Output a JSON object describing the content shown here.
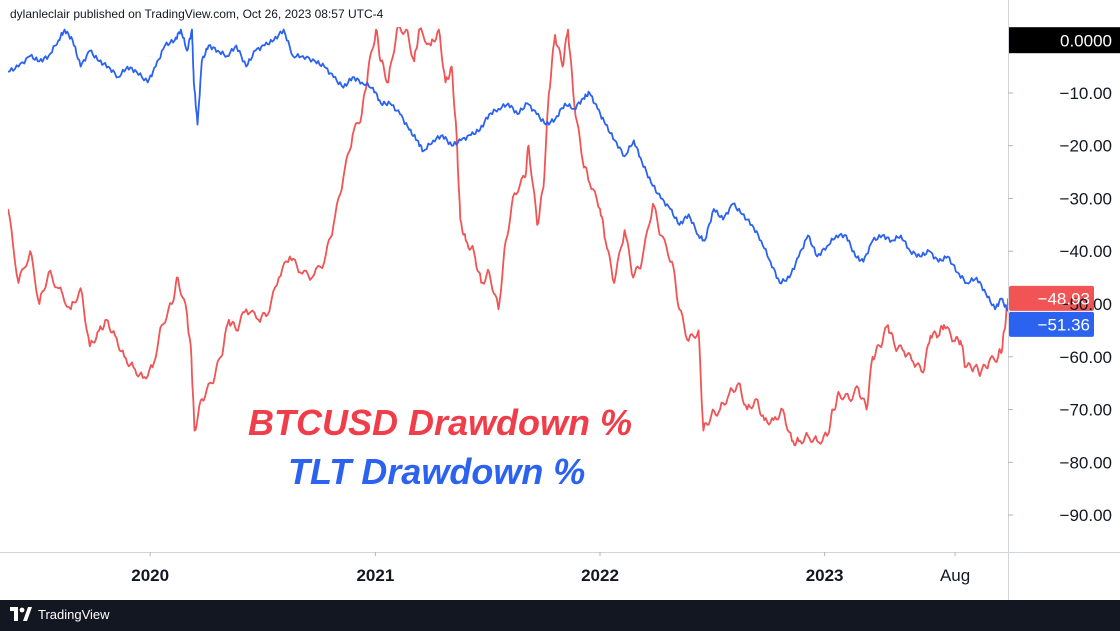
{
  "header": {
    "published_line": "dylanleclair published on TradingView.com, Oct 26, 2023 08:57 UTC-4"
  },
  "footer": {
    "brand_name": "TradingView",
    "logo_icon": "tradingview-logo-icon"
  },
  "chart_data": {
    "type": "line",
    "ylim": [
      -97,
      2.5
    ],
    "y_ticks": [
      "0.0000",
      "−10.00",
      "−20.00",
      "−30.00",
      "−40.00",
      "−50.00",
      "−60.00",
      "−70.00",
      "−80.00",
      "−90.00"
    ],
    "y_tick_values": [
      0,
      -10,
      -20,
      -30,
      -40,
      -50,
      -60,
      -70,
      -80,
      -90
    ],
    "x_range": [
      "2019-05-15",
      "2023-10-26"
    ],
    "x_ticks": [
      {
        "label": "2020",
        "date": "2020-01-01"
      },
      {
        "label": "2021",
        "date": "2021-01-01"
      },
      {
        "label": "2022",
        "date": "2022-01-01"
      },
      {
        "label": "2023",
        "date": "2023-01-01"
      },
      {
        "label": "Aug",
        "date": "2023-08-01"
      }
    ],
    "grid": false,
    "annotations": [
      {
        "text": "BTCUSD Drawdown %",
        "color": "#ef3e4a"
      },
      {
        "text": "TLT Drawdown %",
        "color": "#2b62f0"
      }
    ],
    "series": [
      {
        "name": "BTCUSD Drawdown %",
        "color": "#f05454",
        "last_value_label": "−48.93",
        "last_value": -48.93,
        "points": [
          [
            "2019-05-15",
            -32
          ],
          [
            "2019-06-01",
            -46
          ],
          [
            "2019-06-20",
            -40
          ],
          [
            "2019-07-05",
            -50
          ],
          [
            "2019-07-20",
            -44
          ],
          [
            "2019-08-05",
            -47
          ],
          [
            "2019-08-25",
            -51
          ],
          [
            "2019-09-10",
            -47
          ],
          [
            "2019-09-25",
            -58
          ],
          [
            "2019-10-10",
            -55
          ],
          [
            "2019-10-22",
            -53
          ],
          [
            "2019-11-05",
            -56
          ],
          [
            "2019-11-20",
            -60
          ],
          [
            "2019-12-05",
            -62
          ],
          [
            "2019-12-20",
            -64
          ],
          [
            "2020-01-05",
            -62
          ],
          [
            "2020-01-20",
            -54
          ],
          [
            "2020-02-05",
            -50
          ],
          [
            "2020-02-15",
            -45
          ],
          [
            "2020-03-01",
            -52
          ],
          [
            "2020-03-08",
            -60
          ],
          [
            "2020-03-13",
            -74
          ],
          [
            "2020-03-25",
            -68
          ],
          [
            "2020-04-10",
            -65
          ],
          [
            "2020-04-25",
            -60
          ],
          [
            "2020-05-08",
            -53
          ],
          [
            "2020-05-20",
            -55
          ],
          [
            "2020-06-05",
            -51
          ],
          [
            "2020-06-25",
            -53
          ],
          [
            "2020-07-10",
            -52
          ],
          [
            "2020-07-28",
            -45
          ],
          [
            "2020-08-15",
            -41
          ],
          [
            "2020-09-01",
            -44
          ],
          [
            "2020-09-20",
            -45
          ],
          [
            "2020-10-10",
            -42
          ],
          [
            "2020-10-25",
            -35
          ],
          [
            "2020-11-10",
            -26
          ],
          [
            "2020-11-25",
            -18
          ],
          [
            "2020-12-10",
            -14
          ],
          [
            "2020-12-20",
            -6
          ],
          [
            "2021-01-02",
            2
          ],
          [
            "2021-01-10",
            -4
          ],
          [
            "2021-01-22",
            -8
          ],
          [
            "2021-02-05",
            2
          ],
          [
            "2021-02-20",
            2
          ],
          [
            "2021-03-05",
            -4
          ],
          [
            "2021-03-13",
            2
          ],
          [
            "2021-04-01",
            -1
          ],
          [
            "2021-04-14",
            2
          ],
          [
            "2021-04-25",
            -8
          ],
          [
            "2021-05-05",
            -5
          ],
          [
            "2021-05-13",
            -18
          ],
          [
            "2021-05-19",
            -34
          ],
          [
            "2021-05-28",
            -38
          ],
          [
            "2021-06-10",
            -40
          ],
          [
            "2021-06-22",
            -46
          ],
          [
            "2021-07-05",
            -44
          ],
          [
            "2021-07-20",
            -51
          ],
          [
            "2021-08-01",
            -38
          ],
          [
            "2021-08-15",
            -29
          ],
          [
            "2021-09-01",
            -26
          ],
          [
            "2021-09-07",
            -20
          ],
          [
            "2021-09-21",
            -35
          ],
          [
            "2021-10-01",
            -28
          ],
          [
            "2021-10-10",
            -10
          ],
          [
            "2021-10-20",
            1
          ],
          [
            "2021-11-01",
            -5
          ],
          [
            "2021-11-10",
            2
          ],
          [
            "2021-11-20",
            -12
          ],
          [
            "2021-12-04",
            -23
          ],
          [
            "2021-12-15",
            -27
          ],
          [
            "2022-01-01",
            -32
          ],
          [
            "2022-01-10",
            -38
          ],
          [
            "2022-01-24",
            -46
          ],
          [
            "2022-02-10",
            -36
          ],
          [
            "2022-02-24",
            -45
          ],
          [
            "2022-03-10",
            -42
          ],
          [
            "2022-03-28",
            -31
          ],
          [
            "2022-04-10",
            -37
          ],
          [
            "2022-04-28",
            -42
          ],
          [
            "2022-05-10",
            -51
          ],
          [
            "2022-05-25",
            -57
          ],
          [
            "2022-06-10",
            -55
          ],
          [
            "2022-06-18",
            -74
          ],
          [
            "2022-07-01",
            -71
          ],
          [
            "2022-07-15",
            -70
          ],
          [
            "2022-07-30",
            -67
          ],
          [
            "2022-08-14",
            -65
          ],
          [
            "2022-08-28",
            -70
          ],
          [
            "2022-09-12",
            -68
          ],
          [
            "2022-09-25",
            -72
          ],
          [
            "2022-10-10",
            -72
          ],
          [
            "2022-10-25",
            -70
          ],
          [
            "2022-11-09",
            -76
          ],
          [
            "2022-11-20",
            -76
          ],
          [
            "2022-12-05",
            -75
          ],
          [
            "2022-12-20",
            -76
          ],
          [
            "2023-01-05",
            -75
          ],
          [
            "2023-01-15",
            -70
          ],
          [
            "2023-01-25",
            -67
          ],
          [
            "2023-02-10",
            -68
          ],
          [
            "2023-02-25",
            -66
          ],
          [
            "2023-03-10",
            -70
          ],
          [
            "2023-03-20",
            -60
          ],
          [
            "2023-04-01",
            -58
          ],
          [
            "2023-04-14",
            -54
          ],
          [
            "2023-04-25",
            -58
          ],
          [
            "2023-05-10",
            -59
          ],
          [
            "2023-05-25",
            -61
          ],
          [
            "2023-06-10",
            -63
          ],
          [
            "2023-06-22",
            -56
          ],
          [
            "2023-07-05",
            -56
          ],
          [
            "2023-07-14",
            -54
          ],
          [
            "2023-07-30",
            -57
          ],
          [
            "2023-08-10",
            -57
          ],
          [
            "2023-08-18",
            -62
          ],
          [
            "2023-09-01",
            -62
          ],
          [
            "2023-09-12",
            -63
          ],
          [
            "2023-09-25",
            -61
          ],
          [
            "2023-10-10",
            -60
          ],
          [
            "2023-10-17",
            -58
          ],
          [
            "2023-10-23",
            -52
          ],
          [
            "2023-10-26",
            -48.93
          ]
        ]
      },
      {
        "name": "TLT Drawdown %",
        "color": "#2b62f0",
        "last_value_label": "−51.36",
        "last_value": -51.36,
        "points": [
          [
            "2019-05-15",
            -6
          ],
          [
            "2019-06-01",
            -5
          ],
          [
            "2019-06-20",
            -3
          ],
          [
            "2019-07-05",
            -4
          ],
          [
            "2019-07-20",
            -3
          ],
          [
            "2019-08-05",
            0
          ],
          [
            "2019-08-15",
            2
          ],
          [
            "2019-08-28",
            0
          ],
          [
            "2019-09-10",
            -5
          ],
          [
            "2019-09-25",
            -2
          ],
          [
            "2019-10-10",
            -4
          ],
          [
            "2019-10-25",
            -5
          ],
          [
            "2019-11-10",
            -7
          ],
          [
            "2019-11-25",
            -5
          ],
          [
            "2019-12-10",
            -6
          ],
          [
            "2019-12-28",
            -8
          ],
          [
            "2020-01-10",
            -5
          ],
          [
            "2020-01-25",
            -1
          ],
          [
            "2020-02-10",
            0
          ],
          [
            "2020-02-20",
            2
          ],
          [
            "2020-03-01",
            -2
          ],
          [
            "2020-03-09",
            2
          ],
          [
            "2020-03-12",
            -8
          ],
          [
            "2020-03-18",
            -16
          ],
          [
            "2020-03-25",
            -4
          ],
          [
            "2020-04-05",
            -1
          ],
          [
            "2020-04-20",
            -2
          ],
          [
            "2020-05-05",
            -3
          ],
          [
            "2020-05-20",
            -1
          ],
          [
            "2020-06-05",
            -5
          ],
          [
            "2020-06-20",
            -2
          ],
          [
            "2020-07-05",
            -1
          ],
          [
            "2020-07-20",
            0
          ],
          [
            "2020-08-05",
            2
          ],
          [
            "2020-08-20",
            -3
          ],
          [
            "2020-09-05",
            -3
          ],
          [
            "2020-09-25",
            -4
          ],
          [
            "2020-10-10",
            -5
          ],
          [
            "2020-10-25",
            -7
          ],
          [
            "2020-11-10",
            -9
          ],
          [
            "2020-11-25",
            -7
          ],
          [
            "2020-12-10",
            -8
          ],
          [
            "2020-12-28",
            -9
          ],
          [
            "2021-01-10",
            -12
          ],
          [
            "2021-01-25",
            -12
          ],
          [
            "2021-02-10",
            -14
          ],
          [
            "2021-02-25",
            -17
          ],
          [
            "2021-03-10",
            -19
          ],
          [
            "2021-03-20",
            -21
          ],
          [
            "2021-04-05",
            -19
          ],
          [
            "2021-04-20",
            -18
          ],
          [
            "2021-05-05",
            -20
          ],
          [
            "2021-05-20",
            -19
          ],
          [
            "2021-06-05",
            -18
          ],
          [
            "2021-06-20",
            -17
          ],
          [
            "2021-07-05",
            -14
          ],
          [
            "2021-07-20",
            -13
          ],
          [
            "2021-08-05",
            -12
          ],
          [
            "2021-08-20",
            -14
          ],
          [
            "2021-09-05",
            -12
          ],
          [
            "2021-09-20",
            -14
          ],
          [
            "2021-10-05",
            -16
          ],
          [
            "2021-10-20",
            -15
          ],
          [
            "2021-11-05",
            -12
          ],
          [
            "2021-11-20",
            -13
          ],
          [
            "2021-12-05",
            -11
          ],
          [
            "2021-12-15",
            -10
          ],
          [
            "2021-12-28",
            -13
          ],
          [
            "2022-01-10",
            -16
          ],
          [
            "2022-01-25",
            -19
          ],
          [
            "2022-02-10",
            -22
          ],
          [
            "2022-02-25",
            -19
          ],
          [
            "2022-03-10",
            -23
          ],
          [
            "2022-03-25",
            -27
          ],
          [
            "2022-04-10",
            -30
          ],
          [
            "2022-04-25",
            -32
          ],
          [
            "2022-05-10",
            -35
          ],
          [
            "2022-05-25",
            -33
          ],
          [
            "2022-06-10",
            -37
          ],
          [
            "2022-06-20",
            -38
          ],
          [
            "2022-07-05",
            -32
          ],
          [
            "2022-07-20",
            -34
          ],
          [
            "2022-08-05",
            -31
          ],
          [
            "2022-08-20",
            -33
          ],
          [
            "2022-09-05",
            -35
          ],
          [
            "2022-09-20",
            -38
          ],
          [
            "2022-10-05",
            -42
          ],
          [
            "2022-10-20",
            -46
          ],
          [
            "2022-11-05",
            -45
          ],
          [
            "2022-11-20",
            -41
          ],
          [
            "2022-12-05",
            -37
          ],
          [
            "2022-12-20",
            -41
          ],
          [
            "2023-01-05",
            -39
          ],
          [
            "2023-01-20",
            -37
          ],
          [
            "2023-02-05",
            -37
          ],
          [
            "2023-02-20",
            -41
          ],
          [
            "2023-03-05",
            -42
          ],
          [
            "2023-03-20",
            -38
          ],
          [
            "2023-04-05",
            -37
          ],
          [
            "2023-04-20",
            -38
          ],
          [
            "2023-05-05",
            -37
          ],
          [
            "2023-05-20",
            -40
          ],
          [
            "2023-06-05",
            -41
          ],
          [
            "2023-06-20",
            -40
          ],
          [
            "2023-07-05",
            -42
          ],
          [
            "2023-07-20",
            -41
          ],
          [
            "2023-08-05",
            -44
          ],
          [
            "2023-08-20",
            -46
          ],
          [
            "2023-09-05",
            -45
          ],
          [
            "2023-09-20",
            -48
          ],
          [
            "2023-10-05",
            -51
          ],
          [
            "2023-10-15",
            -49
          ],
          [
            "2023-10-26",
            -51.36
          ]
        ]
      }
    ],
    "top_label": {
      "text": "0.0000",
      "bg": "#000000",
      "fg": "#ffffff"
    }
  }
}
